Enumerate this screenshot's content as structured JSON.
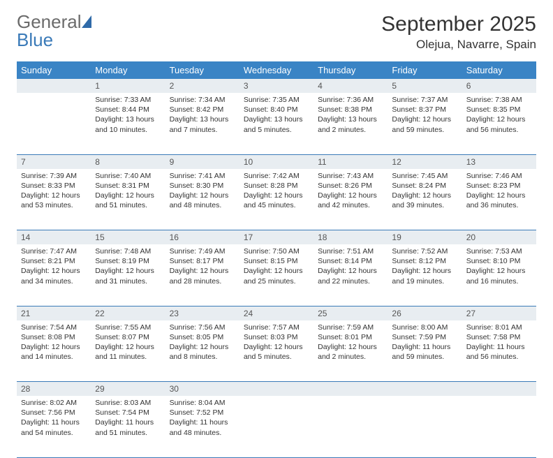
{
  "brand": {
    "word1": "General",
    "word2": "Blue"
  },
  "header": {
    "month_title": "September 2025",
    "location": "Olejua, Navarre, Spain"
  },
  "colors": {
    "header_bg": "#3a84c5",
    "header_text": "#ffffff",
    "daynum_bg": "#e8edf1",
    "daynum_text": "#555555",
    "rule": "#3a7ab8",
    "body_text": "#333333",
    "logo_gray": "#6b6b6b",
    "logo_blue": "#3a7ab8",
    "page_bg": "#ffffff"
  },
  "typography": {
    "month_title_fontsize": 30,
    "location_fontsize": 17,
    "weekday_fontsize": 13,
    "daynum_fontsize": 12,
    "cell_fontsize": 10.5
  },
  "weekdays": [
    "Sunday",
    "Monday",
    "Tuesday",
    "Wednesday",
    "Thursday",
    "Friday",
    "Saturday"
  ],
  "weeks": [
    [
      null,
      {
        "n": "1",
        "sunrise": "7:33 AM",
        "sunset": "8:44 PM",
        "daylight": "13 hours and 10 minutes."
      },
      {
        "n": "2",
        "sunrise": "7:34 AM",
        "sunset": "8:42 PM",
        "daylight": "13 hours and 7 minutes."
      },
      {
        "n": "3",
        "sunrise": "7:35 AM",
        "sunset": "8:40 PM",
        "daylight": "13 hours and 5 minutes."
      },
      {
        "n": "4",
        "sunrise": "7:36 AM",
        "sunset": "8:38 PM",
        "daylight": "13 hours and 2 minutes."
      },
      {
        "n": "5",
        "sunrise": "7:37 AM",
        "sunset": "8:37 PM",
        "daylight": "12 hours and 59 minutes."
      },
      {
        "n": "6",
        "sunrise": "7:38 AM",
        "sunset": "8:35 PM",
        "daylight": "12 hours and 56 minutes."
      }
    ],
    [
      {
        "n": "7",
        "sunrise": "7:39 AM",
        "sunset": "8:33 PM",
        "daylight": "12 hours and 53 minutes."
      },
      {
        "n": "8",
        "sunrise": "7:40 AM",
        "sunset": "8:31 PM",
        "daylight": "12 hours and 51 minutes."
      },
      {
        "n": "9",
        "sunrise": "7:41 AM",
        "sunset": "8:30 PM",
        "daylight": "12 hours and 48 minutes."
      },
      {
        "n": "10",
        "sunrise": "7:42 AM",
        "sunset": "8:28 PM",
        "daylight": "12 hours and 45 minutes."
      },
      {
        "n": "11",
        "sunrise": "7:43 AM",
        "sunset": "8:26 PM",
        "daylight": "12 hours and 42 minutes."
      },
      {
        "n": "12",
        "sunrise": "7:45 AM",
        "sunset": "8:24 PM",
        "daylight": "12 hours and 39 minutes."
      },
      {
        "n": "13",
        "sunrise": "7:46 AM",
        "sunset": "8:23 PM",
        "daylight": "12 hours and 36 minutes."
      }
    ],
    [
      {
        "n": "14",
        "sunrise": "7:47 AM",
        "sunset": "8:21 PM",
        "daylight": "12 hours and 34 minutes."
      },
      {
        "n": "15",
        "sunrise": "7:48 AM",
        "sunset": "8:19 PM",
        "daylight": "12 hours and 31 minutes."
      },
      {
        "n": "16",
        "sunrise": "7:49 AM",
        "sunset": "8:17 PM",
        "daylight": "12 hours and 28 minutes."
      },
      {
        "n": "17",
        "sunrise": "7:50 AM",
        "sunset": "8:15 PM",
        "daylight": "12 hours and 25 minutes."
      },
      {
        "n": "18",
        "sunrise": "7:51 AM",
        "sunset": "8:14 PM",
        "daylight": "12 hours and 22 minutes."
      },
      {
        "n": "19",
        "sunrise": "7:52 AM",
        "sunset": "8:12 PM",
        "daylight": "12 hours and 19 minutes."
      },
      {
        "n": "20",
        "sunrise": "7:53 AM",
        "sunset": "8:10 PM",
        "daylight": "12 hours and 16 minutes."
      }
    ],
    [
      {
        "n": "21",
        "sunrise": "7:54 AM",
        "sunset": "8:08 PM",
        "daylight": "12 hours and 14 minutes."
      },
      {
        "n": "22",
        "sunrise": "7:55 AM",
        "sunset": "8:07 PM",
        "daylight": "12 hours and 11 minutes."
      },
      {
        "n": "23",
        "sunrise": "7:56 AM",
        "sunset": "8:05 PM",
        "daylight": "12 hours and 8 minutes."
      },
      {
        "n": "24",
        "sunrise": "7:57 AM",
        "sunset": "8:03 PM",
        "daylight": "12 hours and 5 minutes."
      },
      {
        "n": "25",
        "sunrise": "7:59 AM",
        "sunset": "8:01 PM",
        "daylight": "12 hours and 2 minutes."
      },
      {
        "n": "26",
        "sunrise": "8:00 AM",
        "sunset": "7:59 PM",
        "daylight": "11 hours and 59 minutes."
      },
      {
        "n": "27",
        "sunrise": "8:01 AM",
        "sunset": "7:58 PM",
        "daylight": "11 hours and 56 minutes."
      }
    ],
    [
      {
        "n": "28",
        "sunrise": "8:02 AM",
        "sunset": "7:56 PM",
        "daylight": "11 hours and 54 minutes."
      },
      {
        "n": "29",
        "sunrise": "8:03 AM",
        "sunset": "7:54 PM",
        "daylight": "11 hours and 51 minutes."
      },
      {
        "n": "30",
        "sunrise": "8:04 AM",
        "sunset": "7:52 PM",
        "daylight": "11 hours and 48 minutes."
      },
      null,
      null,
      null,
      null
    ]
  ],
  "labels": {
    "sunrise": "Sunrise:",
    "sunset": "Sunset:",
    "daylight": "Daylight:"
  }
}
